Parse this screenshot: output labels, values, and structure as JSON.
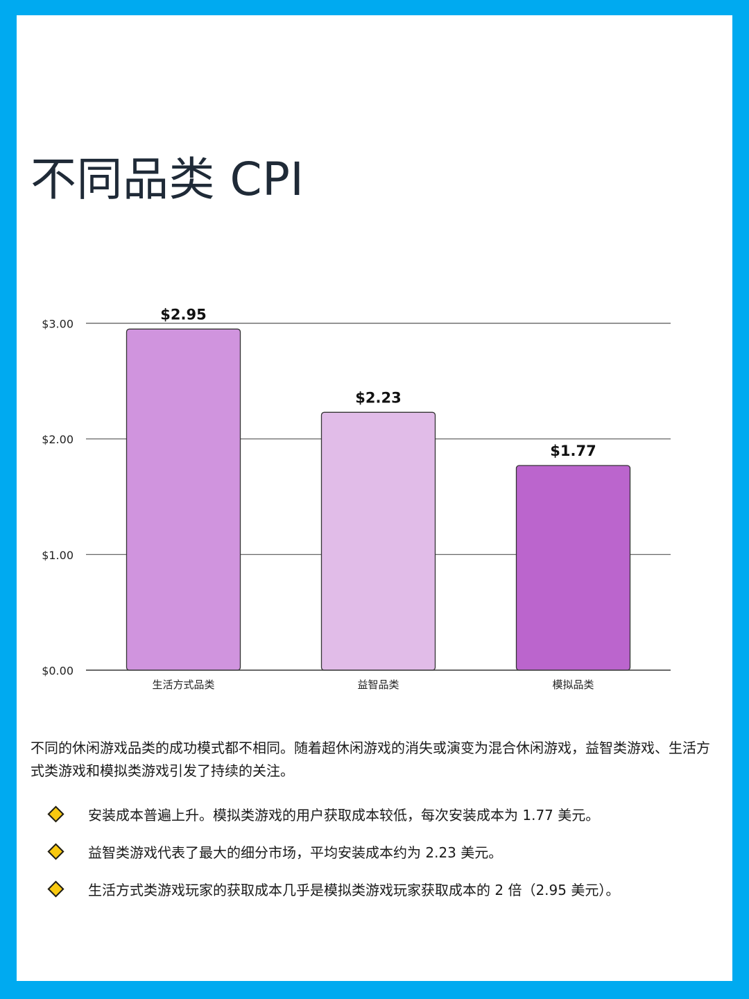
{
  "page": {
    "title": "不同品类 CPI",
    "intro": "不同的休闲游戏品类的成功模式都不相同。随着超休闲游戏的消失或演变为混合休闲游戏，益智类游戏、生活方式类游戏和模拟类游戏引发了持续的关注。",
    "bullets": [
      "安装成本普遍上升。模拟类游戏的用户获取成本较低，每次安装成本为 1.77 美元。",
      "益智类游戏代表了最大的细分市场，平均安装成本约为 2.23 美元。",
      "生活方式类游戏玩家的获取成本几乎是模拟类游戏玩家获取成本的 2 倍（2.95 美元）。"
    ],
    "bullet_icon": "diamond-bullet-icon",
    "frame_color": "#00aaf0",
    "bullet_color": "#f9c90f"
  },
  "chart_data": {
    "type": "bar",
    "categories": [
      "生活方式品类",
      "益智品类",
      "模拟品类"
    ],
    "values": [
      2.95,
      2.23,
      1.77
    ],
    "data_labels": [
      "$2.95",
      "$2.23",
      "$1.77"
    ],
    "colors": [
      "#d094de",
      "#e1bce8",
      "#bb65cd"
    ],
    "yticks": [
      0,
      1,
      2,
      3
    ],
    "ytick_labels": [
      "$0.00",
      "$1.00",
      "$2.00",
      "$3.00"
    ],
    "ylim": [
      0,
      3
    ],
    "title": "",
    "xlabel": "",
    "ylabel": "",
    "grid": true,
    "legend": "none"
  }
}
